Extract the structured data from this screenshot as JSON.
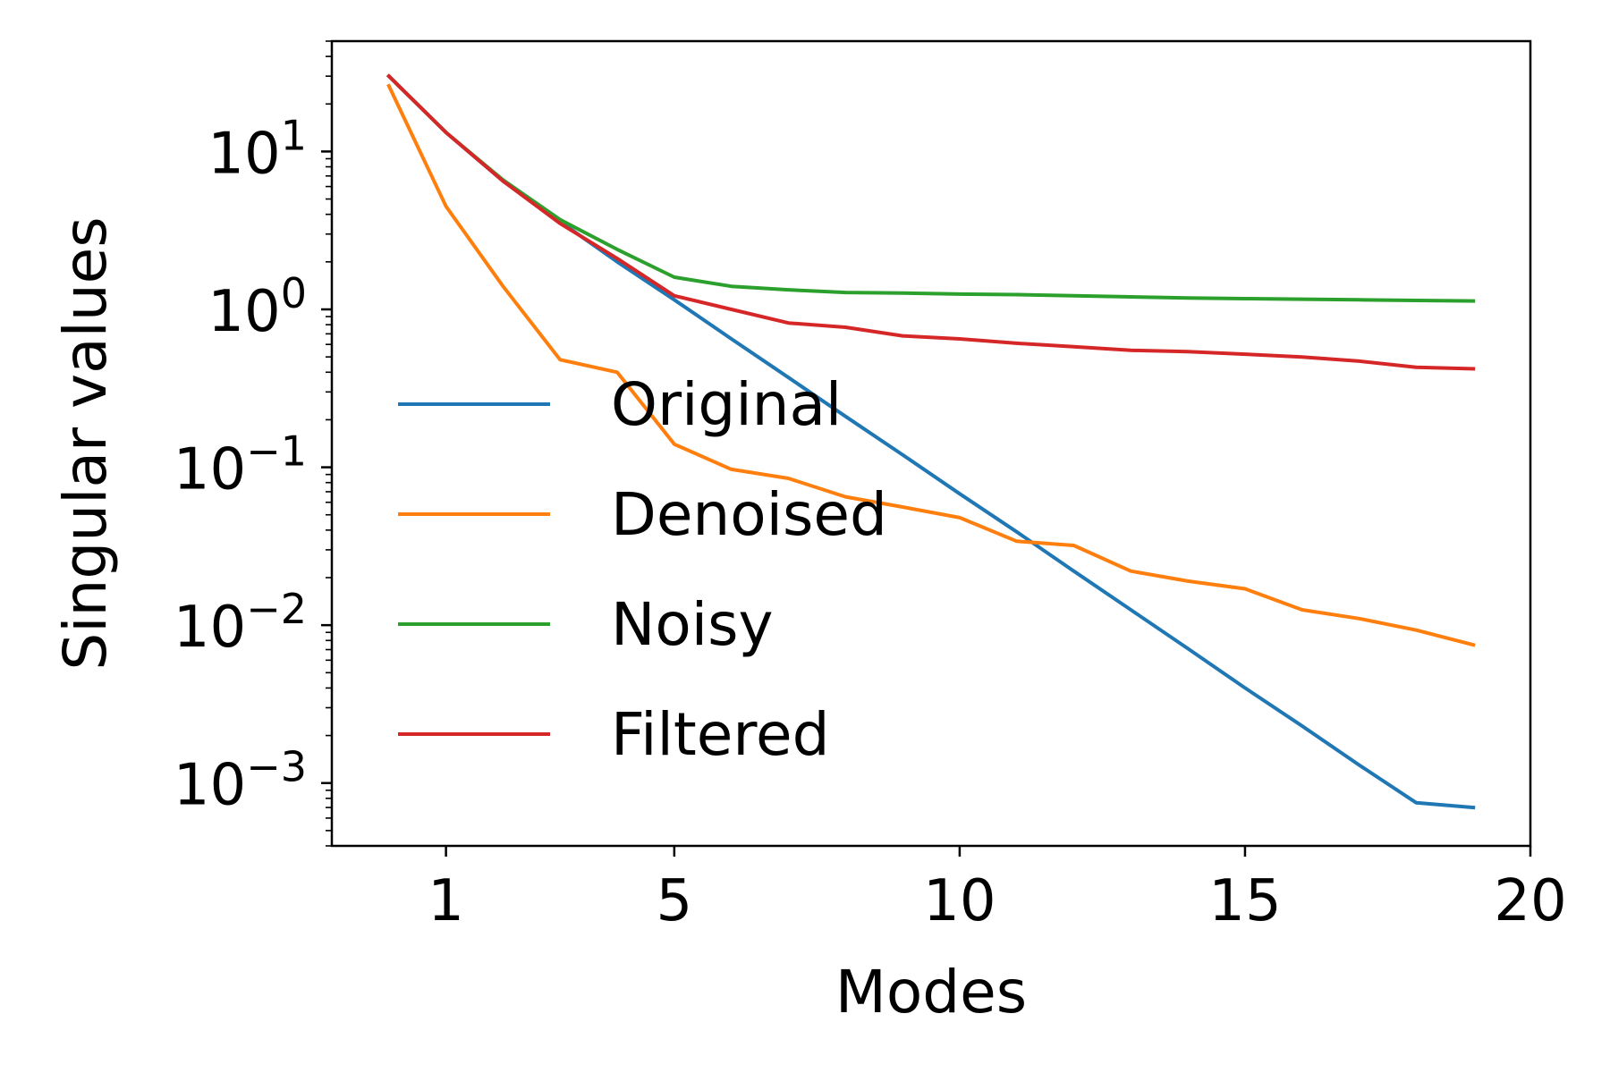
{
  "chart_data": {
    "type": "line",
    "title": "",
    "xlabel": "Modes",
    "ylabel": "Singular values",
    "y_scale": "log",
    "xlim": [
      -1,
      20
    ],
    "ylim": [
      0.0004,
      50
    ],
    "x_ticks": [
      {
        "value": 1,
        "label": "1"
      },
      {
        "value": 5,
        "label": "5"
      },
      {
        "value": 10,
        "label": "10"
      },
      {
        "value": 15,
        "label": "15"
      },
      {
        "value": 20,
        "label": "20"
      }
    ],
    "y_ticks": [
      {
        "value": 10,
        "base": "10",
        "exp": "1"
      },
      {
        "value": 1,
        "base": "10",
        "exp": "0"
      },
      {
        "value": 0.1,
        "base": "10",
        "exp": "−1"
      },
      {
        "value": 0.01,
        "base": "10",
        "exp": "−2"
      },
      {
        "value": 0.001,
        "base": "10",
        "exp": "−3"
      }
    ],
    "grid": false,
    "legend_position": "center-left",
    "x": [
      0,
      1,
      2,
      3,
      4,
      5,
      6,
      7,
      8,
      9,
      10,
      11,
      12,
      13,
      14,
      15,
      16,
      17,
      18,
      19
    ],
    "series": [
      {
        "name": "Original",
        "color": "#1f77b4",
        "values": [
          30,
          13.2,
          6.5,
          3.6,
          2.0,
          1.15,
          0.65,
          0.37,
          0.21,
          0.12,
          0.068,
          0.039,
          0.022,
          0.0125,
          0.0071,
          0.004,
          0.0023,
          0.0013,
          0.00075,
          0.0007
        ]
      },
      {
        "name": "Denoised",
        "color": "#ff7f0e",
        "values": [
          26,
          4.5,
          1.4,
          0.48,
          0.4,
          0.14,
          0.097,
          0.085,
          0.065,
          0.056,
          0.048,
          0.034,
          0.032,
          0.022,
          0.019,
          0.017,
          0.0125,
          0.011,
          0.0093,
          0.0075
        ]
      },
      {
        "name": "Noisy",
        "color": "#2ca02c",
        "values": [
          30,
          13.2,
          6.6,
          3.7,
          2.4,
          1.6,
          1.4,
          1.33,
          1.28,
          1.27,
          1.25,
          1.24,
          1.22,
          1.2,
          1.18,
          1.17,
          1.16,
          1.15,
          1.14,
          1.13
        ]
      },
      {
        "name": "Filtered",
        "color": "#d62728",
        "values": [
          30,
          13.2,
          6.5,
          3.5,
          2.1,
          1.22,
          1.0,
          0.82,
          0.77,
          0.68,
          0.65,
          0.61,
          0.58,
          0.55,
          0.54,
          0.52,
          0.5,
          0.47,
          0.43,
          0.42
        ]
      }
    ]
  }
}
